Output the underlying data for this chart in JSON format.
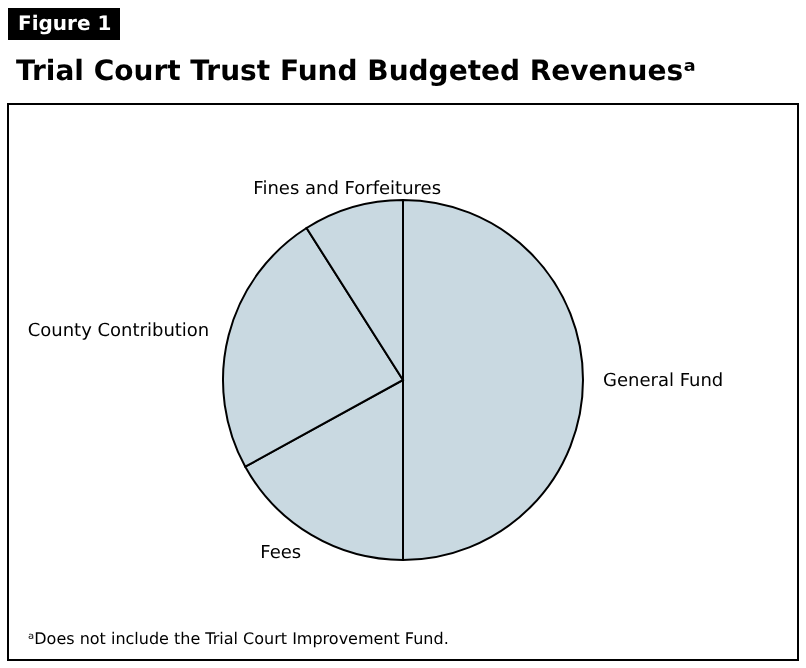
{
  "chart_data": {
    "type": "pie",
    "title": "Trial Court Trust Fund Budgeted Revenuesᵃ",
    "categories": [
      "General Fund",
      "Fees",
      "County Contribution",
      "Fines and Forfeitures"
    ],
    "values": [
      50,
      17,
      24,
      9
    ],
    "colors": [
      "#c9d9e1",
      "#c9d9e1",
      "#c9d9e1",
      "#c9d9e1"
    ],
    "annotations": [
      "Figure 1",
      "ᵃDoes not include the Trial Court Improvement Fund."
    ]
  }
}
